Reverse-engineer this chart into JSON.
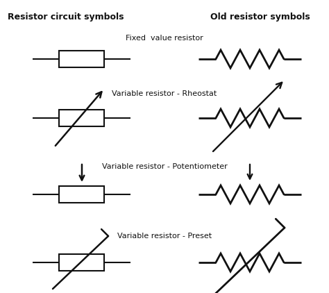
{
  "title_left": "Resistor circuit symbols",
  "title_right": "Old resistor symbols",
  "labels": [
    "Fixed  value resistor",
    "Variable resistor - Rheostat",
    "Variable resistor - Potentiometer",
    "Variable resistor - Preset"
  ],
  "bg_color": "#ffffff",
  "line_color": "#111111",
  "fig_width": 4.74,
  "fig_height": 4.22,
  "dpi": 100
}
